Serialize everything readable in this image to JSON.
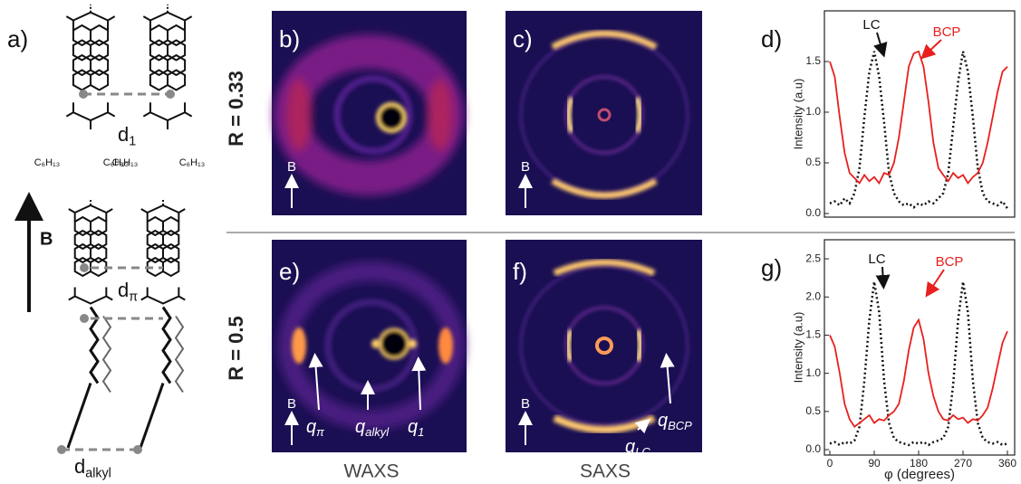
{
  "figure": {
    "panel_labels": [
      "a)",
      "b)",
      "c)",
      "e)",
      "f)"
    ],
    "row_labels": [
      "R = 0.33",
      "R = 0.5"
    ],
    "column_labels": [
      "WAXS",
      "SAXS"
    ],
    "field_labels": [
      "B",
      "B",
      "B",
      "B",
      "B"
    ],
    "chain_labels": [
      "C₆H₁₃",
      "C₆H₁₃",
      "C₆H₁₃",
      "C₆H₁₃"
    ],
    "distance_labels": [
      {
        "main": "d",
        "sub": "1"
      },
      {
        "main": "d",
        "sub": "π"
      },
      {
        "main": "d",
        "sub": "alkyl"
      }
    ],
    "scattering_labels": [
      {
        "main": "q",
        "sub": "π"
      },
      {
        "main": "q",
        "sub": "alkyl"
      },
      {
        "main": "q",
        "sub": "1"
      },
      {
        "main": "q",
        "sub": "BCP"
      },
      {
        "main": "q",
        "sub": "LC"
      }
    ]
  },
  "chart_data": [
    {
      "type": "line",
      "title": "d)",
      "y_label": "Intensity (a.u)",
      "x": [
        0,
        10,
        20,
        30,
        40,
        50,
        60,
        70,
        80,
        90,
        100,
        110,
        120,
        130,
        140,
        150,
        160,
        170,
        180,
        190,
        200,
        210,
        220,
        230,
        240,
        250,
        260,
        270,
        280,
        290,
        300,
        310,
        320,
        330,
        340,
        350,
        360
      ],
      "xlim": [
        0,
        360
      ],
      "ylim": [
        0,
        2.0
      ],
      "yticks": [
        {
          "value": 0,
          "label": "0.0"
        },
        0.5,
        {
          "value": 1,
          "label": "1.0"
        },
        1.5
      ],
      "annotations": [
        {
          "text": "LC",
          "color": "#111111"
        },
        {
          "text": "BCP",
          "color": "#e8201e"
        }
      ],
      "series": [
        {
          "name": "LC",
          "color": "#111111",
          "dash": true,
          "values": [
            0.1,
            0.12,
            0.08,
            0.15,
            0.1,
            0.2,
            0.45,
            0.95,
            1.4,
            1.6,
            1.35,
            0.9,
            0.4,
            0.2,
            0.12,
            0.08,
            0.1,
            0.06,
            0.1,
            0.08,
            0.12,
            0.1,
            0.15,
            0.2,
            0.4,
            0.85,
            1.3,
            1.6,
            1.4,
            0.95,
            0.45,
            0.2,
            0.12,
            0.1,
            0.08,
            0.12,
            0.05
          ]
        },
        {
          "name": "BCP",
          "color": "#e8201e",
          "dash": false,
          "values": [
            1.5,
            1.35,
            0.95,
            0.6,
            0.4,
            0.35,
            0.3,
            0.38,
            0.32,
            0.36,
            0.3,
            0.4,
            0.38,
            0.5,
            0.75,
            1.1,
            1.45,
            1.58,
            1.6,
            1.45,
            1.1,
            0.7,
            0.45,
            0.38,
            0.32,
            0.4,
            0.35,
            0.38,
            0.3,
            0.36,
            0.4,
            0.5,
            0.7,
            0.95,
            1.2,
            1.4,
            1.45
          ]
        }
      ]
    },
    {
      "type": "line",
      "title": "g)",
      "y_label": "Intensity (a.u)",
      "x_label": "φ (degrees)",
      "x": [
        0,
        10,
        20,
        30,
        40,
        50,
        60,
        70,
        80,
        90,
        100,
        110,
        120,
        130,
        140,
        150,
        160,
        170,
        180,
        190,
        200,
        210,
        220,
        230,
        240,
        250,
        260,
        270,
        280,
        290,
        300,
        310,
        320,
        330,
        340,
        350,
        360
      ],
      "xlim": [
        0,
        360
      ],
      "ylim": [
        0,
        2.75
      ],
      "xticks": [
        0,
        90,
        180,
        270,
        360
      ],
      "yticks": [
        {
          "value": 0,
          "label": "0.0"
        },
        0.5,
        {
          "value": 1,
          "label": "1.0"
        },
        1.5,
        {
          "value": 2,
          "label": "2.0"
        },
        2.5
      ],
      "annotations": [
        {
          "text": "LC",
          "color": "#111111"
        },
        {
          "text": "BCP",
          "color": "#e8201e"
        }
      ],
      "series": [
        {
          "name": "LC",
          "color": "#111111",
          "dash": true,
          "values": [
            0.08,
            0.1,
            0.06,
            0.1,
            0.08,
            0.12,
            0.3,
            0.9,
            1.7,
            2.2,
            1.8,
            0.9,
            0.35,
            0.15,
            0.1,
            0.08,
            0.06,
            0.1,
            0.08,
            0.1,
            0.06,
            0.1,
            0.12,
            0.15,
            0.3,
            0.85,
            1.7,
            2.2,
            1.8,
            0.9,
            0.35,
            0.15,
            0.1,
            0.08,
            0.1,
            0.06,
            0.08
          ]
        },
        {
          "name": "BCP",
          "color": "#e8201e",
          "dash": false,
          "values": [
            1.5,
            1.35,
            1.0,
            0.6,
            0.4,
            0.3,
            0.35,
            0.4,
            0.45,
            0.35,
            0.4,
            0.38,
            0.45,
            0.5,
            0.6,
            0.9,
            1.3,
            1.6,
            1.7,
            1.45,
            1.0,
            0.7,
            0.5,
            0.4,
            0.38,
            0.45,
            0.4,
            0.42,
            0.35,
            0.4,
            0.38,
            0.45,
            0.55,
            0.8,
            1.1,
            1.4,
            1.55
          ]
        }
      ]
    }
  ]
}
